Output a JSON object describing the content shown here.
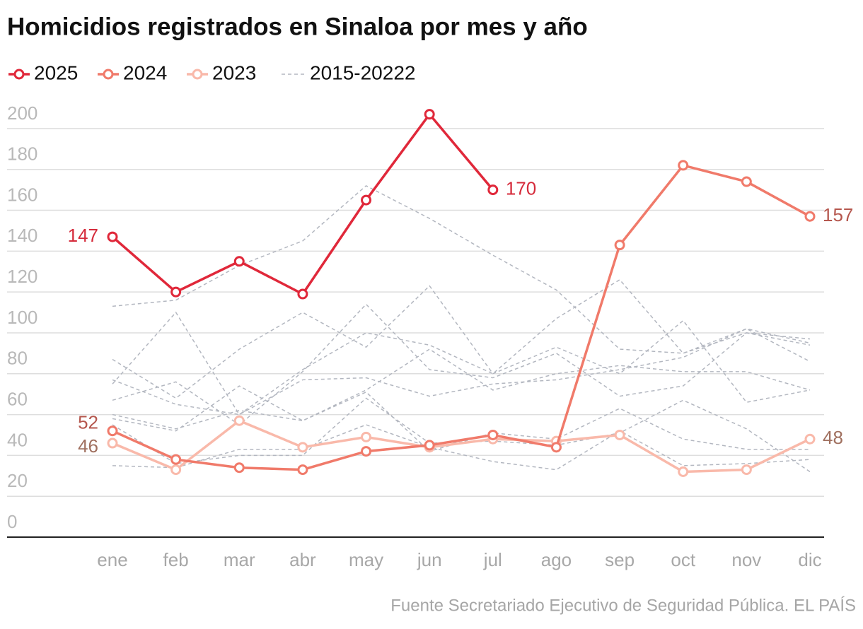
{
  "chart_data": {
    "type": "line",
    "title": "Homicidios registrados en Sinaloa por mes y año",
    "source": "Fuente Secretariado Ejecutivo de Seguridad Pública. EL PAÍS",
    "categories": [
      "ene",
      "feb",
      "mar",
      "abr",
      "may",
      "jun",
      "jul",
      "ago",
      "sep",
      "oct",
      "nov",
      "dic"
    ],
    "ylim": [
      0,
      210
    ],
    "yticks": [
      0,
      20,
      40,
      60,
      80,
      100,
      120,
      140,
      160,
      180,
      200
    ],
    "grid": true,
    "legend": "top-left",
    "series": [
      {
        "name": "2025",
        "color": "#e0283a",
        "label_color": "#d52b3b",
        "values": [
          147,
          120,
          135,
          119,
          165,
          207,
          170,
          null,
          null,
          null,
          null,
          null
        ],
        "value_labels": [
          "147",
          null,
          null,
          null,
          null,
          null,
          "170",
          null,
          null,
          null,
          null,
          null
        ]
      },
      {
        "name": "2024",
        "color": "#f07a6a",
        "label_color": "#b5574e",
        "values": [
          52,
          38,
          34,
          33,
          42,
          45,
          50,
          44,
          143,
          182,
          174,
          157
        ],
        "value_labels": [
          "52",
          null,
          null,
          null,
          null,
          null,
          null,
          null,
          null,
          null,
          null,
          "157"
        ]
      },
      {
        "name": "2023",
        "color": "#f9b9aa",
        "label_color": "#a0705f",
        "values": [
          46,
          33,
          57,
          44,
          49,
          44,
          48,
          47,
          50,
          32,
          33,
          48
        ],
        "value_labels": [
          "46",
          null,
          null,
          null,
          null,
          null,
          null,
          null,
          null,
          null,
          null,
          "48"
        ]
      }
    ],
    "reference": {
      "name": "2015-20222",
      "color": "#b3b7c0",
      "lines": [
        [
          113,
          116,
          133,
          145,
          172,
          156,
          138,
          121,
          92,
          90,
          102,
          95
        ],
        [
          75,
          110,
          60,
          82,
          100,
          94,
          80,
          107,
          126,
          90,
          100,
          97
        ],
        [
          87,
          68,
          92,
          110,
          93,
          123,
          80,
          93,
          80,
          106,
          66,
          72
        ],
        [
          77,
          65,
          60,
          77,
          78,
          69,
          75,
          77,
          82,
          88,
          102,
          86
        ],
        [
          67,
          76,
          55,
          81,
          114,
          82,
          78,
          90,
          69,
          74,
          100,
          94
        ],
        [
          60,
          53,
          62,
          57,
          72,
          92,
          72,
          80,
          84,
          81,
          81,
          72
        ],
        [
          58,
          52,
          74,
          57,
          71,
          42,
          51,
          48,
          63,
          48,
          43,
          43
        ],
        [
          35,
          34,
          43,
          43,
          55,
          44,
          37,
          33,
          52,
          35,
          36,
          38
        ],
        [
          55,
          36,
          40,
          40,
          68,
          46,
          47,
          45,
          51,
          67,
          53,
          32
        ]
      ]
    }
  }
}
